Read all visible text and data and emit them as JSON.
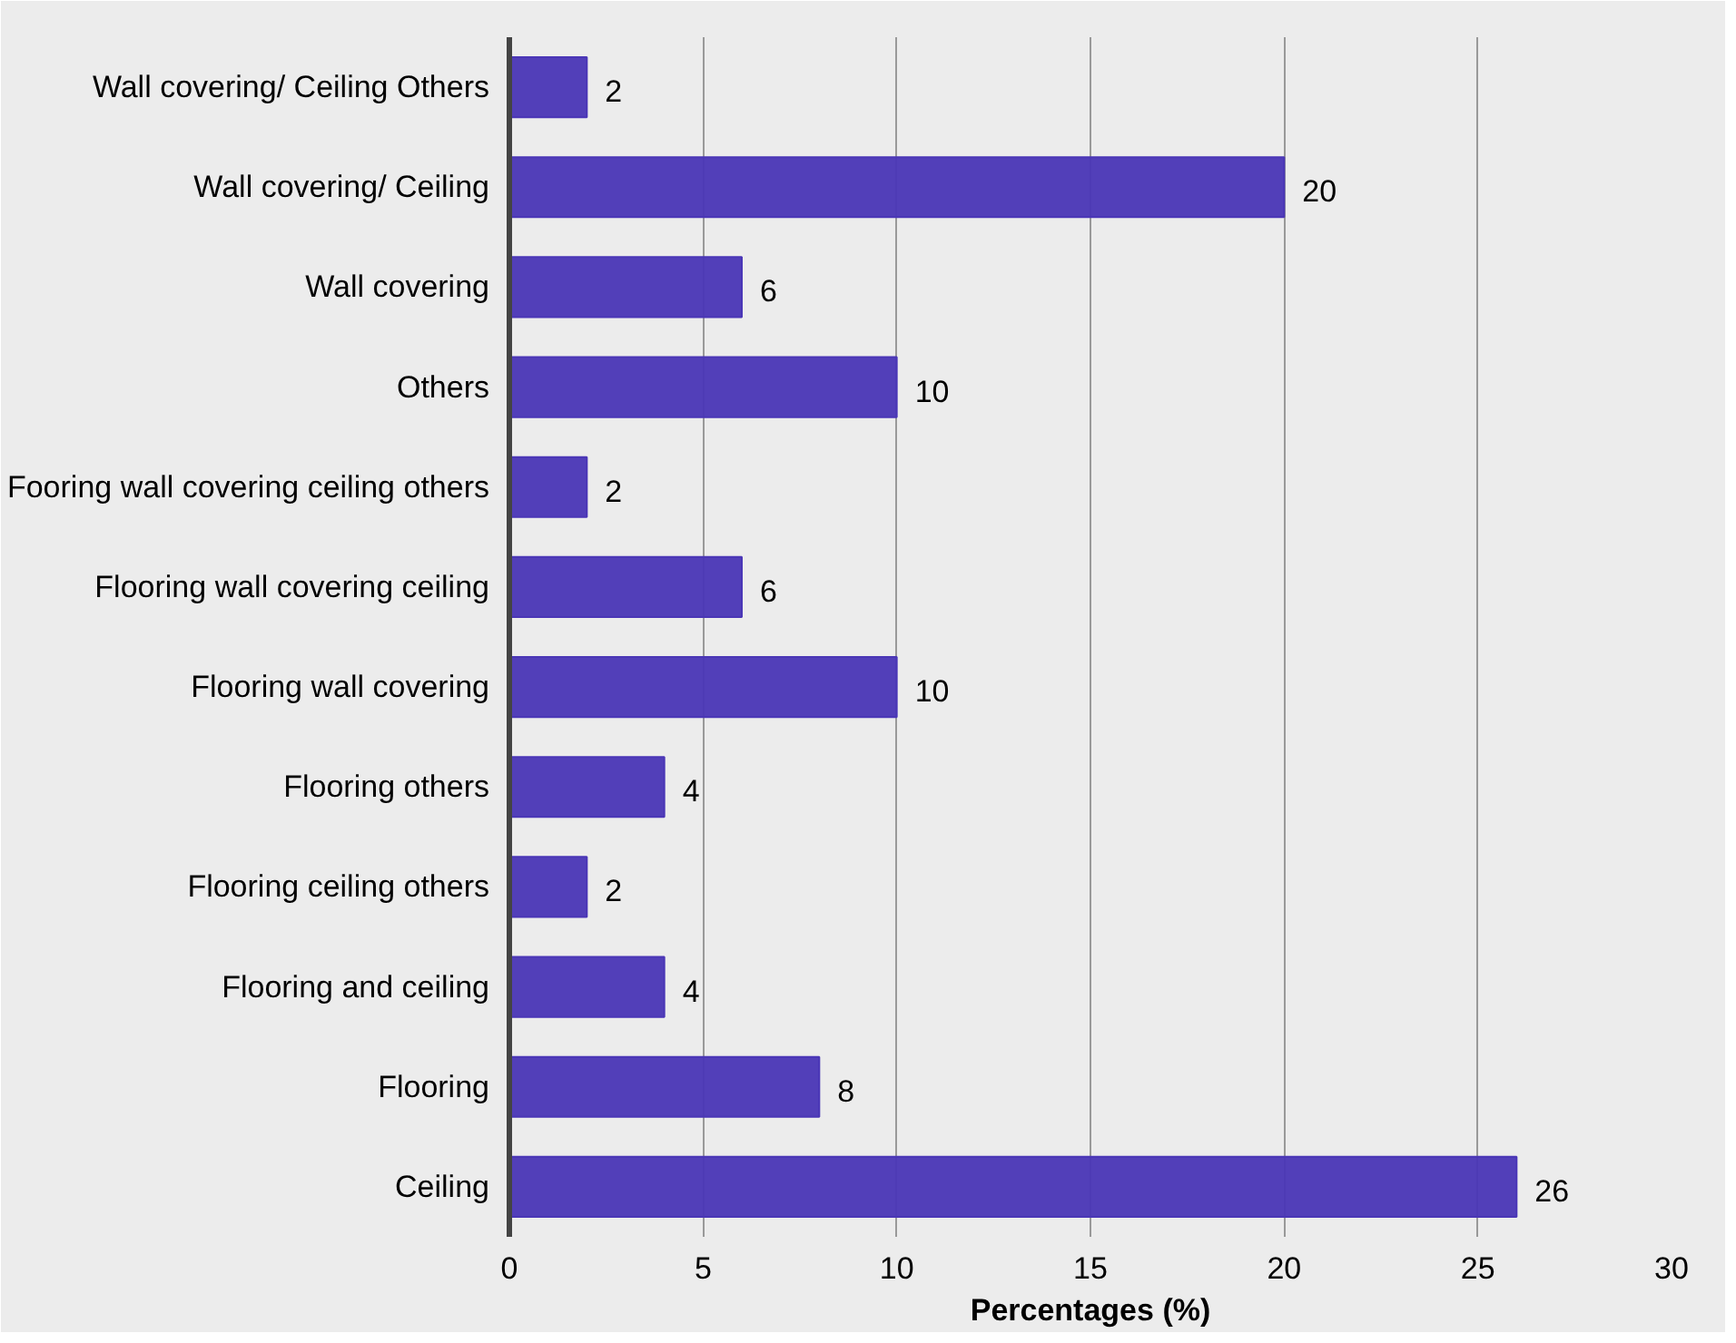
{
  "chart_data": {
    "type": "bar",
    "orientation": "horizontal",
    "xlabel": "Percentages (%)",
    "categories": [
      "Wall covering/ Ceiling Others",
      "Wall covering/ Ceiling",
      "Wall covering",
      "Others",
      "Fooring wall covering ceiling others",
      "Flooring wall covering ceiling",
      "Flooring wall covering",
      "Flooring others",
      "Flooring ceiling others",
      "Flooring and ceiling",
      "Flooring",
      "Ceiling"
    ],
    "values": [
      2,
      20,
      6,
      10,
      2,
      6,
      10,
      4,
      2,
      4,
      8,
      26
    ],
    "color": "#4a36b6",
    "xlim": [
      0,
      30
    ],
    "xticks": [
      0,
      5,
      10,
      15,
      20,
      25,
      30
    ],
    "grid": "x",
    "data_labels": true
  }
}
